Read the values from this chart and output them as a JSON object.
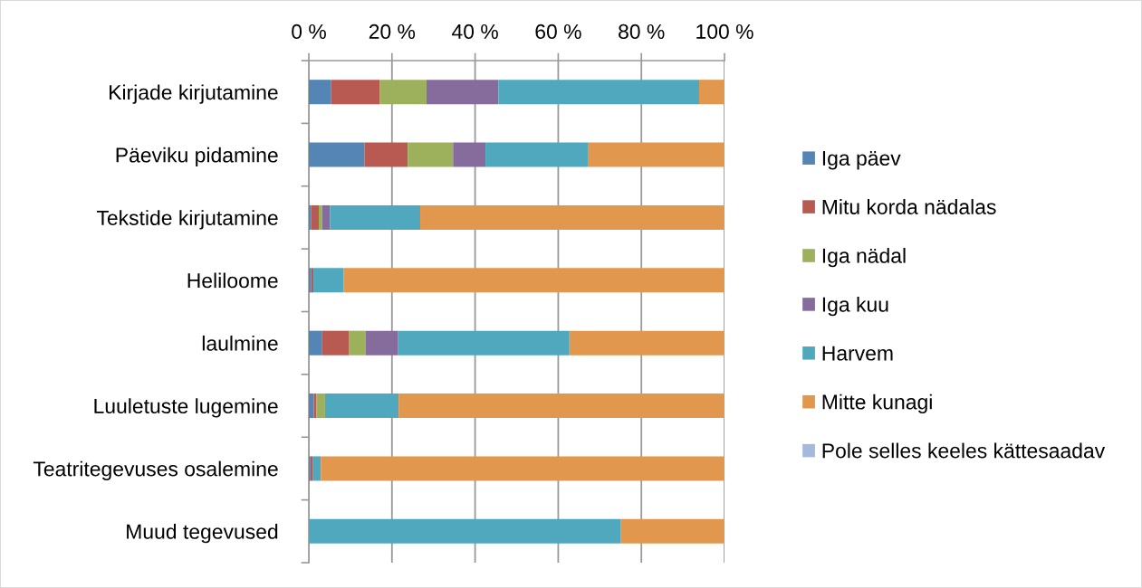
{
  "chart_data": {
    "type": "bar",
    "orientation": "horizontal",
    "stacked": true,
    "categories": [
      "Kirjade kirjutamine",
      "Päeviku pidamine",
      "Tekstide kirjutamine",
      "Heliloome",
      "laulmine",
      "Luuletuste lugemine",
      "Teatritegevuses osalemine",
      "Muud tegevused"
    ],
    "series": [
      {
        "name": "Iga päev",
        "color": "#5585b5",
        "values": [
          5.3,
          13.4,
          0.5,
          0.5,
          3.1,
          1.2,
          0.4,
          0
        ]
      },
      {
        "name": "Mitu korda nädalas",
        "color": "#b85a52",
        "values": [
          11.8,
          10.4,
          1.9,
          0.6,
          6.5,
          0.6,
          0.5,
          0
        ]
      },
      {
        "name": "Iga nädal",
        "color": "#9db05c",
        "values": [
          11.2,
          10.9,
          0.8,
          0,
          4.1,
          2.1,
          0,
          0
        ]
      },
      {
        "name": "Iga kuu",
        "color": "#866c9c",
        "values": [
          17.3,
          7.8,
          1.9,
          0,
          7.8,
          0,
          0,
          0
        ]
      },
      {
        "name": "Harvem",
        "color": "#50a8bf",
        "values": [
          48.3,
          24.6,
          21.7,
          7.3,
          41.2,
          17.7,
          2.0,
          75.1
        ]
      },
      {
        "name": "Mitte kunagi",
        "color": "#e2974e",
        "values": [
          6.1,
          32.9,
          73.2,
          91.6,
          37.3,
          78.4,
          97.1,
          24.9
        ]
      },
      {
        "name": "Pole selles keeles kättesaadav",
        "color": "#a5b9dc",
        "values": [
          0,
          0,
          0,
          0,
          0,
          0,
          0,
          0
        ]
      }
    ],
    "xlim": [
      0,
      100
    ],
    "xticks": [
      {
        "value": 0,
        "label": "0 %"
      },
      {
        "value": 20,
        "label": "20 %"
      },
      {
        "value": 40,
        "label": "40 %"
      },
      {
        "value": 60,
        "label": "60 %"
      },
      {
        "value": 80,
        "label": "80 %"
      },
      {
        "value": 100,
        "label": "100 %"
      }
    ],
    "grid": "x",
    "legend": "right"
  }
}
